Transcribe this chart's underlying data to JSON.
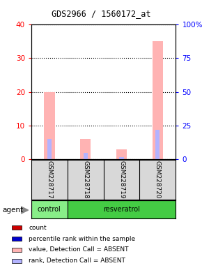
{
  "title": "GDS2966 / 1560172_at",
  "samples": [
    "GSM228717",
    "GSM228718",
    "GSM228719",
    "GSM228720"
  ],
  "groups": [
    "control",
    "resveratrol",
    "resveratrol",
    "resveratrol"
  ],
  "ylim_left": [
    0,
    40
  ],
  "ylim_right": [
    0,
    100
  ],
  "yticks_left": [
    0,
    10,
    20,
    30,
    40
  ],
  "yticks_right": [
    0,
    25,
    50,
    75,
    100
  ],
  "ytick_labels_left": [
    "0",
    "10",
    "20",
    "30",
    "40"
  ],
  "ytick_labels_right": [
    "0",
    "25",
    "50",
    "75",
    "100%"
  ],
  "value_absent": [
    20,
    6,
    3,
    35
  ],
  "rank_absent": [
    15,
    5,
    2,
    22
  ],
  "color_count": "#cc0000",
  "color_rank": "#0000cc",
  "color_value_absent": "#ffb3b3",
  "color_rank_absent": "#b3b3ff",
  "control_color": "#88ee88",
  "resveratrol_color": "#44cc44",
  "legend_items": [
    {
      "label": "count",
      "color": "#cc0000"
    },
    {
      "label": "percentile rank within the sample",
      "color": "#0000cc"
    },
    {
      "label": "value, Detection Call = ABSENT",
      "color": "#ffb3b3"
    },
    {
      "label": "rank, Detection Call = ABSENT",
      "color": "#b3b3ff"
    }
  ],
  "agent_label": "agent",
  "background_color": "#ffffff"
}
